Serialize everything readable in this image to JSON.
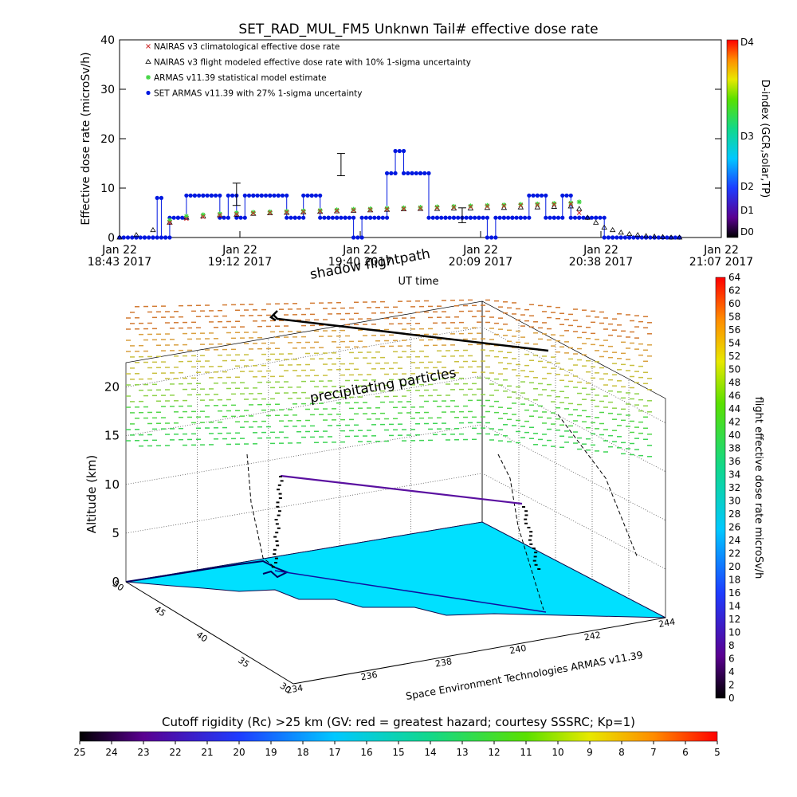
{
  "title": "SET_RAD_MUL_FM5 Unknwn Tail#  effective dose rate",
  "credit": "Space Environment Technologies ARMAS v11.39",
  "chart_data": [
    {
      "type": "line",
      "id": "dose-time-series",
      "ylabel": "Effective dose rate (microSv/h)",
      "xlabel": "UT time",
      "ylim": [
        0,
        40
      ],
      "yticks": [
        0,
        10,
        20,
        30,
        40
      ],
      "xticks": [
        {
          "date": "Jan 22",
          "time": "18:43 2017"
        },
        {
          "date": "Jan 22",
          "time": "19:12 2017"
        },
        {
          "date": "Jan 22",
          "time": "19:40 2017"
        },
        {
          "date": "Jan 22",
          "time": "20:09 2017"
        },
        {
          "date": "Jan 22",
          "time": "20:38 2017"
        },
        {
          "date": "Jan 22",
          "time": "21:07 2017"
        }
      ],
      "legend": "top-left",
      "legend_entries": [
        {
          "marker": "x",
          "color": "#cc2a2a",
          "label": "NAIRAS v3 climatological effective dose rate"
        },
        {
          "marker": "triangle",
          "color": "#000000",
          "label": "NAIRAS v3 flight modeled effective dose rate with 10% 1-sigma uncertainty"
        },
        {
          "marker": "star",
          "color": "#3fd43f",
          "label": "ARMAS v11.39 statistical model estimate"
        },
        {
          "marker": "dot",
          "color": "#0018e0",
          "label": "SET ARMAS v11.39 with 27% 1-sigma uncertainty"
        }
      ],
      "series": [
        {
          "name": "SET ARMAS v11.39 with 27% 1-sigma uncertainty",
          "x_minutes": [
            0,
            4,
            6,
            8,
            9,
            10,
            11,
            12,
            14,
            16,
            18,
            20,
            22,
            24,
            26,
            28,
            30,
            32,
            34,
            36,
            38,
            40,
            42,
            44,
            46,
            48,
            50,
            52,
            54,
            56,
            58,
            60,
            62,
            64,
            66,
            68,
            70,
            72,
            74,
            76,
            78,
            80,
            82,
            84,
            86,
            88,
            90,
            92,
            94,
            96,
            98,
            100,
            102,
            104,
            106,
            108,
            110,
            112,
            114,
            116,
            118,
            120,
            122,
            124,
            126,
            128,
            130,
            132,
            134
          ],
          "values": [
            0,
            0,
            0,
            0,
            8,
            0,
            0,
            4,
            4,
            8.5,
            8.5,
            8.5,
            8.5,
            4,
            8.5,
            4,
            8.5,
            8.5,
            8.5,
            8.5,
            8.5,
            4,
            4,
            8.5,
            8.5,
            4,
            4,
            4,
            4,
            0,
            4,
            4,
            4,
            13,
            17.5,
            13,
            13,
            13,
            4,
            4,
            4,
            4,
            4,
            4,
            4,
            0,
            4,
            4,
            4,
            4,
            8.5,
            8.5,
            4,
            4,
            8.5,
            4,
            4,
            4,
            4,
            0,
            0,
            0,
            0,
            0,
            0,
            0,
            0,
            0,
            0
          ]
        },
        {
          "name": "NAIRAS v3 flight modeled effective dose rate with 10% 1-sigma uncertainty",
          "x_minutes": [
            0,
            4,
            8,
            12,
            16,
            20,
            24,
            28,
            32,
            36,
            40,
            44,
            48,
            52,
            56,
            60,
            64,
            68,
            72,
            76,
            80,
            84,
            88,
            92,
            96,
            100,
            104,
            108,
            110,
            112,
            114,
            116,
            118,
            120,
            122,
            124,
            126,
            128,
            130,
            132,
            134
          ],
          "values": [
            0,
            0.5,
            1.5,
            3,
            4,
            4.3,
            4.5,
            4.6,
            4.8,
            4.9,
            5,
            5.1,
            5.2,
            5.3,
            5.4,
            5.5,
            5.6,
            5.7,
            5.8,
            5.8,
            5.9,
            5.9,
            6,
            6,
            6.1,
            6.1,
            6.2,
            6.3,
            5.8,
            4,
            3,
            2,
            1.5,
            1,
            0.7,
            0.5,
            0.3,
            0.2,
            0.1,
            0,
            0
          ]
        },
        {
          "name": "ARMAS v11.39 statistical model estimate",
          "x_minutes": [
            12,
            16,
            20,
            24,
            28,
            32,
            36,
            40,
            44,
            48,
            52,
            56,
            60,
            64,
            68,
            72,
            76,
            80,
            84,
            88,
            92,
            96,
            100,
            104,
            108,
            110
          ],
          "values": [
            3.5,
            4.3,
            4.6,
            4.8,
            5,
            5.1,
            5.2,
            5.3,
            5.4,
            5.5,
            5.6,
            5.7,
            5.8,
            5.9,
            6,
            6.1,
            6.2,
            6.3,
            6.4,
            6.5,
            6.6,
            6.7,
            6.8,
            6.9,
            7,
            7.2
          ]
        },
        {
          "name": "NAIRAS v3 climatological effective dose rate",
          "x_minutes": [
            12,
            16,
            20,
            24,
            28,
            32,
            36,
            40,
            44,
            48,
            52,
            56,
            60,
            64,
            68,
            72,
            76,
            80,
            84,
            88,
            92,
            96,
            100,
            104,
            108,
            110
          ],
          "values": [
            3,
            3.8,
            4.2,
            4.5,
            4.7,
            4.9,
            5,
            5.1,
            5.2,
            5.3,
            5.4,
            5.5,
            5.6,
            5.7,
            5.8,
            5.9,
            6,
            6.1,
            6.2,
            6.3,
            6.4,
            6.5,
            6.6,
            6.7,
            6.8,
            5
          ]
        }
      ],
      "error_bars": [
        {
          "x_minutes": 28,
          "low": 6.5,
          "high": 11
        },
        {
          "x_minutes": 53,
          "low": 12.5,
          "high": 17
        },
        {
          "x_minutes": 82,
          "low": 3,
          "high": 6
        }
      ],
      "x_range_minutes": [
        0,
        144
      ],
      "colorbar_right": {
        "label": "D-index (GCR,solar,TP)",
        "ticks": [
          "D0",
          "D1",
          "D2",
          "D3",
          "D4"
        ]
      }
    },
    {
      "type": "scatter",
      "id": "flight-3d",
      "zlabel": "Altitude (km)",
      "zticks": [
        0,
        5,
        10,
        15,
        20
      ],
      "lat_ticks": [
        30,
        35,
        40,
        45,
        50
      ],
      "lon_ticks": [
        234,
        236,
        238,
        240,
        242,
        244
      ],
      "annotations": [
        "shadow flightpath",
        "precipitating particles"
      ],
      "colorbar_right": {
        "label": "flight effective dose rate microSv/h",
        "ticks": [
          0,
          2,
          4,
          6,
          8,
          10,
          12,
          14,
          16,
          18,
          20,
          22,
          24,
          26,
          28,
          30,
          32,
          34,
          36,
          38,
          40,
          42,
          44,
          46,
          48,
          50,
          52,
          54,
          56,
          58,
          60,
          62,
          64
        ]
      },
      "colorbar_bottom": {
        "label": "Cutoff rigidity (Rc) >25 km (GV: red = greatest hazard; courtesy SSSRC; Kp=1)",
        "ticks": [
          25,
          24,
          23,
          22,
          21,
          20,
          19,
          18,
          17,
          16,
          15,
          14,
          13,
          12,
          11,
          10,
          9,
          8,
          7,
          6,
          5
        ]
      }
    }
  ]
}
